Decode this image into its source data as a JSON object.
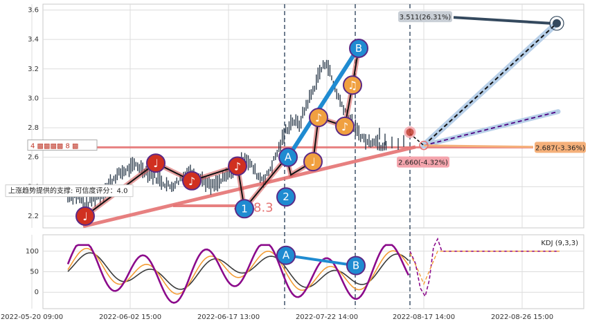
{
  "chart_data": [
    {
      "panel": "price",
      "type": "candlestick-with-annotations",
      "x_tick_labels": [
        "2022-05-20 09:00",
        "2022-06-02 15:00",
        "2022-06-17 13:00",
        "2022-07-22 14:00",
        "2022-08-17 14:00",
        "2022-08-26 15:00"
      ],
      "ylim": [
        2.12,
        3.64
      ],
      "y_ticks": [
        2.2,
        2.4,
        2.6,
        2.8,
        3.0,
        3.2,
        3.4,
        3.6
      ],
      "grid": true,
      "price_path": [
        [
          0.0,
          2.33
        ],
        [
          1,
          2.35
        ],
        [
          2,
          2.3
        ],
        [
          3,
          2.28
        ],
        [
          4,
          2.33
        ],
        [
          5,
          2.35
        ],
        [
          6,
          2.42
        ],
        [
          7,
          2.47
        ],
        [
          8,
          2.5
        ],
        [
          9,
          2.52
        ],
        [
          10,
          2.55
        ],
        [
          11,
          2.52
        ],
        [
          12,
          2.49
        ],
        [
          13,
          2.46
        ],
        [
          14,
          2.43
        ],
        [
          15,
          2.4
        ],
        [
          16,
          2.43
        ],
        [
          17,
          2.47
        ],
        [
          18,
          2.5
        ],
        [
          19,
          2.48
        ],
        [
          20,
          2.44
        ],
        [
          21,
          2.4
        ],
        [
          22,
          2.42
        ],
        [
          23,
          2.46
        ],
        [
          24,
          2.5
        ],
        [
          25,
          2.56
        ],
        [
          26,
          2.6
        ],
        [
          27,
          2.54
        ],
        [
          28,
          2.47
        ],
        [
          29,
          2.45
        ],
        [
          30,
          2.55
        ],
        [
          31,
          2.66
        ],
        [
          32,
          2.78
        ],
        [
          33,
          2.85
        ],
        [
          34,
          2.82
        ],
        [
          35,
          2.95
        ],
        [
          36,
          3.05
        ],
        [
          37,
          3.18
        ],
        [
          38,
          3.25
        ],
        [
          39,
          3.1
        ],
        [
          40,
          2.98
        ],
        [
          41,
          2.9
        ],
        [
          42,
          2.8
        ],
        [
          43,
          2.75
        ],
        [
          44,
          2.7
        ],
        [
          45,
          2.72
        ],
        [
          46,
          2.68
        ],
        [
          47,
          2.7
        ]
      ],
      "support_text": "上涨趋势提供的支撑: 可信度评分：4.0",
      "value_text": "4.28.3",
      "top_label": "3.511(26.31%)",
      "top_value": 3.511,
      "projection_labels": [
        {
          "text": "2.687(-3.36%)",
          "value": 2.687
        },
        {
          "text": "2.660(-4.32%)",
          "value": 2.66
        }
      ],
      "horizontal_level": 2.667,
      "point_labels": [
        "A",
        "B",
        "1",
        "2"
      ],
      "note_glyphs": [
        "♩",
        "♩",
        "♪",
        "♪",
        "♩",
        "♪",
        "♫",
        "♪",
        "♬",
        "♫"
      ],
      "legend_fragment": "4 ▩▩▩▩ 8 ▩"
    },
    {
      "panel": "kdj",
      "type": "line",
      "title": "KDJ (9,3,3)",
      "ylim": [
        -40,
        140
      ],
      "y_ticks": [
        0,
        50,
        100
      ],
      "series": [
        {
          "name": "K",
          "color": "#f39c35"
        },
        {
          "name": "D",
          "color": "#3a3a3a"
        },
        {
          "name": "J",
          "color": "#8b0a8b"
        }
      ],
      "point_labels": [
        "A",
        "B"
      ]
    }
  ],
  "colors": {
    "grid": "#dcdcdc",
    "support_red": "#e57373",
    "blue_stroke": "#1f8bd1",
    "projection_dark": "#2c3e50",
    "projection_light": "#b7cfe8",
    "dashed_purple": "#4b0082",
    "orange_label": "#f5b07a",
    "pink_label": "#f4a5ad"
  }
}
